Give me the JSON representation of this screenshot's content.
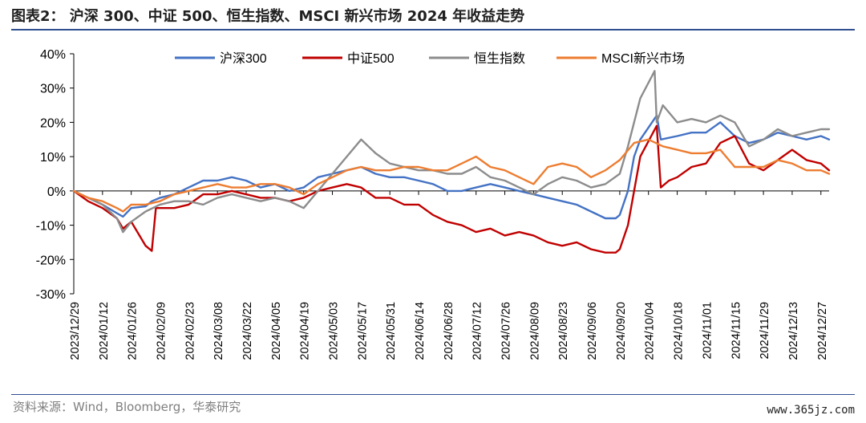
{
  "title": "图表2：  沪深 300、中证 500、恒生指数、MSCI 新兴市场 2024 年收益走势",
  "source": "资料来源：Wind，Bloomberg，华泰研究",
  "watermark": "www.365jz.com",
  "colors": {
    "hs300": "#4472c4",
    "zz500": "#c00000",
    "hsi": "#8c8c8c",
    "msci": "#ed7d31",
    "rule": "#2f4f8f"
  },
  "chart_data": {
    "type": "line",
    "y_unit": "%",
    "ylim": [
      -30,
      40
    ],
    "y_ticks": [
      40,
      30,
      20,
      10,
      0,
      -10,
      -20,
      -30
    ],
    "y_tick_labels": [
      "40%",
      "30%",
      "20%",
      "10%",
      "0%",
      "-10%",
      "-20%",
      "-30%"
    ],
    "x_range": [
      "2023-12-29",
      "2024-12-31"
    ],
    "x_ticks": [
      "2023/12/29",
      "2024/01/12",
      "2024/01/26",
      "2024/02/09",
      "2024/02/23",
      "2024/03/08",
      "2024/03/22",
      "2024/04/05",
      "2024/04/19",
      "2024/05/03",
      "2024/05/17",
      "2024/05/31",
      "2024/06/14",
      "2024/06/28",
      "2024/07/12",
      "2024/07/26",
      "2024/08/09",
      "2024/08/23",
      "2024/09/06",
      "2024/09/20",
      "2024/10/04",
      "2024/10/18",
      "2024/11/01",
      "2024/11/15",
      "2024/11/29",
      "2024/12/13",
      "2024/12/27"
    ],
    "legend_position": "top",
    "grid": false,
    "series": [
      {
        "name": "沪深300",
        "color_key": "hs300",
        "points": [
          [
            "2023-12-29",
            0
          ],
          [
            "2024-01-05",
            -2
          ],
          [
            "2024-01-12",
            -4
          ],
          [
            "2024-01-19",
            -6.5
          ],
          [
            "2024-01-22",
            -7.5
          ],
          [
            "2024-01-26",
            -5
          ],
          [
            "2024-02-02",
            -4.5
          ],
          [
            "2024-02-05",
            -3
          ],
          [
            "2024-02-09",
            -2
          ],
          [
            "2024-02-16",
            -1
          ],
          [
            "2024-02-23",
            1
          ],
          [
            "2024-03-01",
            3
          ],
          [
            "2024-03-08",
            3
          ],
          [
            "2024-03-15",
            4
          ],
          [
            "2024-03-22",
            3
          ],
          [
            "2024-03-29",
            1
          ],
          [
            "2024-04-05",
            2
          ],
          [
            "2024-04-12",
            0
          ],
          [
            "2024-04-19",
            1
          ],
          [
            "2024-04-26",
            4
          ],
          [
            "2024-05-03",
            5
          ],
          [
            "2024-05-10",
            6
          ],
          [
            "2024-05-17",
            7
          ],
          [
            "2024-05-24",
            5
          ],
          [
            "2024-05-31",
            4
          ],
          [
            "2024-06-07",
            4
          ],
          [
            "2024-06-14",
            3
          ],
          [
            "2024-06-21",
            2
          ],
          [
            "2024-06-28",
            0
          ],
          [
            "2024-07-05",
            0
          ],
          [
            "2024-07-12",
            1
          ],
          [
            "2024-07-19",
            2
          ],
          [
            "2024-07-26",
            1
          ],
          [
            "2024-08-02",
            0
          ],
          [
            "2024-08-09",
            -1
          ],
          [
            "2024-08-16",
            -2
          ],
          [
            "2024-08-23",
            -3
          ],
          [
            "2024-08-30",
            -4
          ],
          [
            "2024-09-06",
            -6
          ],
          [
            "2024-09-13",
            -8
          ],
          [
            "2024-09-18",
            -8
          ],
          [
            "2024-09-20",
            -7
          ],
          [
            "2024-09-24",
            0
          ],
          [
            "2024-09-27",
            10
          ],
          [
            "2024-09-30",
            15
          ],
          [
            "2024-10-08",
            22
          ],
          [
            "2024-10-10",
            15
          ],
          [
            "2024-10-18",
            16
          ],
          [
            "2024-10-25",
            17
          ],
          [
            "2024-11-01",
            17
          ],
          [
            "2024-11-08",
            20
          ],
          [
            "2024-11-15",
            16
          ],
          [
            "2024-11-22",
            14
          ],
          [
            "2024-11-29",
            15
          ],
          [
            "2024-12-06",
            17
          ],
          [
            "2024-12-13",
            16
          ],
          [
            "2024-12-20",
            15
          ],
          [
            "2024-12-27",
            16
          ],
          [
            "2024-12-31",
            15
          ]
        ]
      },
      {
        "name": "中证500",
        "color_key": "zz500",
        "points": [
          [
            "2023-12-29",
            0
          ],
          [
            "2024-01-05",
            -3
          ],
          [
            "2024-01-12",
            -5
          ],
          [
            "2024-01-19",
            -8
          ],
          [
            "2024-01-22",
            -11
          ],
          [
            "2024-01-26",
            -9
          ],
          [
            "2024-02-02",
            -16
          ],
          [
            "2024-02-05",
            -17.5
          ],
          [
            "2024-02-07",
            -5
          ],
          [
            "2024-02-09",
            -5
          ],
          [
            "2024-02-16",
            -5
          ],
          [
            "2024-02-23",
            -4
          ],
          [
            "2024-03-01",
            -1
          ],
          [
            "2024-03-08",
            -1
          ],
          [
            "2024-03-15",
            0
          ],
          [
            "2024-03-22",
            -1
          ],
          [
            "2024-03-29",
            -2
          ],
          [
            "2024-04-05",
            -2
          ],
          [
            "2024-04-12",
            -3
          ],
          [
            "2024-04-19",
            -2
          ],
          [
            "2024-04-26",
            0
          ],
          [
            "2024-05-03",
            1
          ],
          [
            "2024-05-10",
            2
          ],
          [
            "2024-05-17",
            1
          ],
          [
            "2024-05-24",
            -2
          ],
          [
            "2024-05-31",
            -2
          ],
          [
            "2024-06-07",
            -4
          ],
          [
            "2024-06-14",
            -4
          ],
          [
            "2024-06-21",
            -7
          ],
          [
            "2024-06-28",
            -9
          ],
          [
            "2024-07-05",
            -10
          ],
          [
            "2024-07-12",
            -12
          ],
          [
            "2024-07-19",
            -11
          ],
          [
            "2024-07-26",
            -13
          ],
          [
            "2024-08-02",
            -12
          ],
          [
            "2024-08-09",
            -13
          ],
          [
            "2024-08-16",
            -15
          ],
          [
            "2024-08-23",
            -16
          ],
          [
            "2024-08-30",
            -15
          ],
          [
            "2024-09-06",
            -17
          ],
          [
            "2024-09-13",
            -18
          ],
          [
            "2024-09-18",
            -18
          ],
          [
            "2024-09-20",
            -17
          ],
          [
            "2024-09-24",
            -10
          ],
          [
            "2024-09-27",
            0
          ],
          [
            "2024-09-30",
            10
          ],
          [
            "2024-10-08",
            19
          ],
          [
            "2024-10-10",
            1
          ],
          [
            "2024-10-14",
            3
          ],
          [
            "2024-10-18",
            4
          ],
          [
            "2024-10-25",
            7
          ],
          [
            "2024-11-01",
            8
          ],
          [
            "2024-11-08",
            14
          ],
          [
            "2024-11-15",
            16
          ],
          [
            "2024-11-22",
            8
          ],
          [
            "2024-11-29",
            6
          ],
          [
            "2024-12-06",
            9
          ],
          [
            "2024-12-13",
            12
          ],
          [
            "2024-12-20",
            9
          ],
          [
            "2024-12-27",
            8
          ],
          [
            "2024-12-31",
            6
          ]
        ]
      },
      {
        "name": "恒生指数",
        "color_key": "hsi",
        "points": [
          [
            "2023-12-29",
            0
          ],
          [
            "2024-01-05",
            -2
          ],
          [
            "2024-01-12",
            -4
          ],
          [
            "2024-01-19",
            -8
          ],
          [
            "2024-01-22",
            -12
          ],
          [
            "2024-01-26",
            -9
          ],
          [
            "2024-02-02",
            -6
          ],
          [
            "2024-02-09",
            -4
          ],
          [
            "2024-02-16",
            -3
          ],
          [
            "2024-02-23",
            -3
          ],
          [
            "2024-03-01",
            -4
          ],
          [
            "2024-03-08",
            -2
          ],
          [
            "2024-03-15",
            -1
          ],
          [
            "2024-03-22",
            -2
          ],
          [
            "2024-03-29",
            -3
          ],
          [
            "2024-04-05",
            -2
          ],
          [
            "2024-04-12",
            -3
          ],
          [
            "2024-04-19",
            -5
          ],
          [
            "2024-04-26",
            0
          ],
          [
            "2024-05-03",
            5
          ],
          [
            "2024-05-10",
            10
          ],
          [
            "2024-05-17",
            15
          ],
          [
            "2024-05-24",
            11
          ],
          [
            "2024-05-31",
            8
          ],
          [
            "2024-06-07",
            7
          ],
          [
            "2024-06-14",
            6
          ],
          [
            "2024-06-21",
            6
          ],
          [
            "2024-06-28",
            5
          ],
          [
            "2024-07-05",
            5
          ],
          [
            "2024-07-12",
            7
          ],
          [
            "2024-07-19",
            4
          ],
          [
            "2024-07-26",
            3
          ],
          [
            "2024-08-02",
            1
          ],
          [
            "2024-08-09",
            -1
          ],
          [
            "2024-08-16",
            2
          ],
          [
            "2024-08-23",
            4
          ],
          [
            "2024-08-30",
            3
          ],
          [
            "2024-09-06",
            1
          ],
          [
            "2024-09-13",
            2
          ],
          [
            "2024-09-20",
            5
          ],
          [
            "2024-09-24",
            13
          ],
          [
            "2024-09-27",
            20
          ],
          [
            "2024-09-30",
            27
          ],
          [
            "2024-10-07",
            35
          ],
          [
            "2024-10-08",
            20
          ],
          [
            "2024-10-11",
            25
          ],
          [
            "2024-10-18",
            20
          ],
          [
            "2024-10-25",
            21
          ],
          [
            "2024-11-01",
            20
          ],
          [
            "2024-11-08",
            22
          ],
          [
            "2024-11-15",
            20
          ],
          [
            "2024-11-22",
            13
          ],
          [
            "2024-11-29",
            15
          ],
          [
            "2024-12-06",
            18
          ],
          [
            "2024-12-13",
            16
          ],
          [
            "2024-12-20",
            17
          ],
          [
            "2024-12-27",
            18
          ],
          [
            "2024-12-31",
            18
          ]
        ]
      },
      {
        "name": "MSCI新兴市场",
        "color_key": "msci",
        "points": [
          [
            "2023-12-29",
            0
          ],
          [
            "2024-01-05",
            -2
          ],
          [
            "2024-01-12",
            -3
          ],
          [
            "2024-01-19",
            -5
          ],
          [
            "2024-01-22",
            -6
          ],
          [
            "2024-01-26",
            -4
          ],
          [
            "2024-02-02",
            -4
          ],
          [
            "2024-02-09",
            -3
          ],
          [
            "2024-02-16",
            -1
          ],
          [
            "2024-02-23",
            0
          ],
          [
            "2024-03-01",
            1
          ],
          [
            "2024-03-08",
            2
          ],
          [
            "2024-03-15",
            1
          ],
          [
            "2024-03-22",
            1
          ],
          [
            "2024-03-29",
            2
          ],
          [
            "2024-04-05",
            2
          ],
          [
            "2024-04-12",
            1
          ],
          [
            "2024-04-19",
            -1
          ],
          [
            "2024-04-26",
            2
          ],
          [
            "2024-05-03",
            4
          ],
          [
            "2024-05-10",
            6
          ],
          [
            "2024-05-17",
            7
          ],
          [
            "2024-05-24",
            6
          ],
          [
            "2024-05-31",
            6
          ],
          [
            "2024-06-07",
            7
          ],
          [
            "2024-06-14",
            7
          ],
          [
            "2024-06-21",
            6
          ],
          [
            "2024-06-28",
            6
          ],
          [
            "2024-07-05",
            8
          ],
          [
            "2024-07-12",
            10
          ],
          [
            "2024-07-19",
            7
          ],
          [
            "2024-07-26",
            6
          ],
          [
            "2024-08-02",
            4
          ],
          [
            "2024-08-09",
            2
          ],
          [
            "2024-08-16",
            7
          ],
          [
            "2024-08-23",
            8
          ],
          [
            "2024-08-30",
            7
          ],
          [
            "2024-09-06",
            4
          ],
          [
            "2024-09-13",
            6
          ],
          [
            "2024-09-20",
            9
          ],
          [
            "2024-09-27",
            14
          ],
          [
            "2024-10-04",
            15
          ],
          [
            "2024-10-11",
            13
          ],
          [
            "2024-10-18",
            12
          ],
          [
            "2024-10-25",
            11
          ],
          [
            "2024-11-01",
            11
          ],
          [
            "2024-11-08",
            12
          ],
          [
            "2024-11-15",
            7
          ],
          [
            "2024-11-22",
            7
          ],
          [
            "2024-11-29",
            7
          ],
          [
            "2024-12-06",
            9
          ],
          [
            "2024-12-13",
            8
          ],
          [
            "2024-12-20",
            6
          ],
          [
            "2024-12-27",
            6
          ],
          [
            "2024-12-31",
            5
          ]
        ]
      }
    ]
  }
}
